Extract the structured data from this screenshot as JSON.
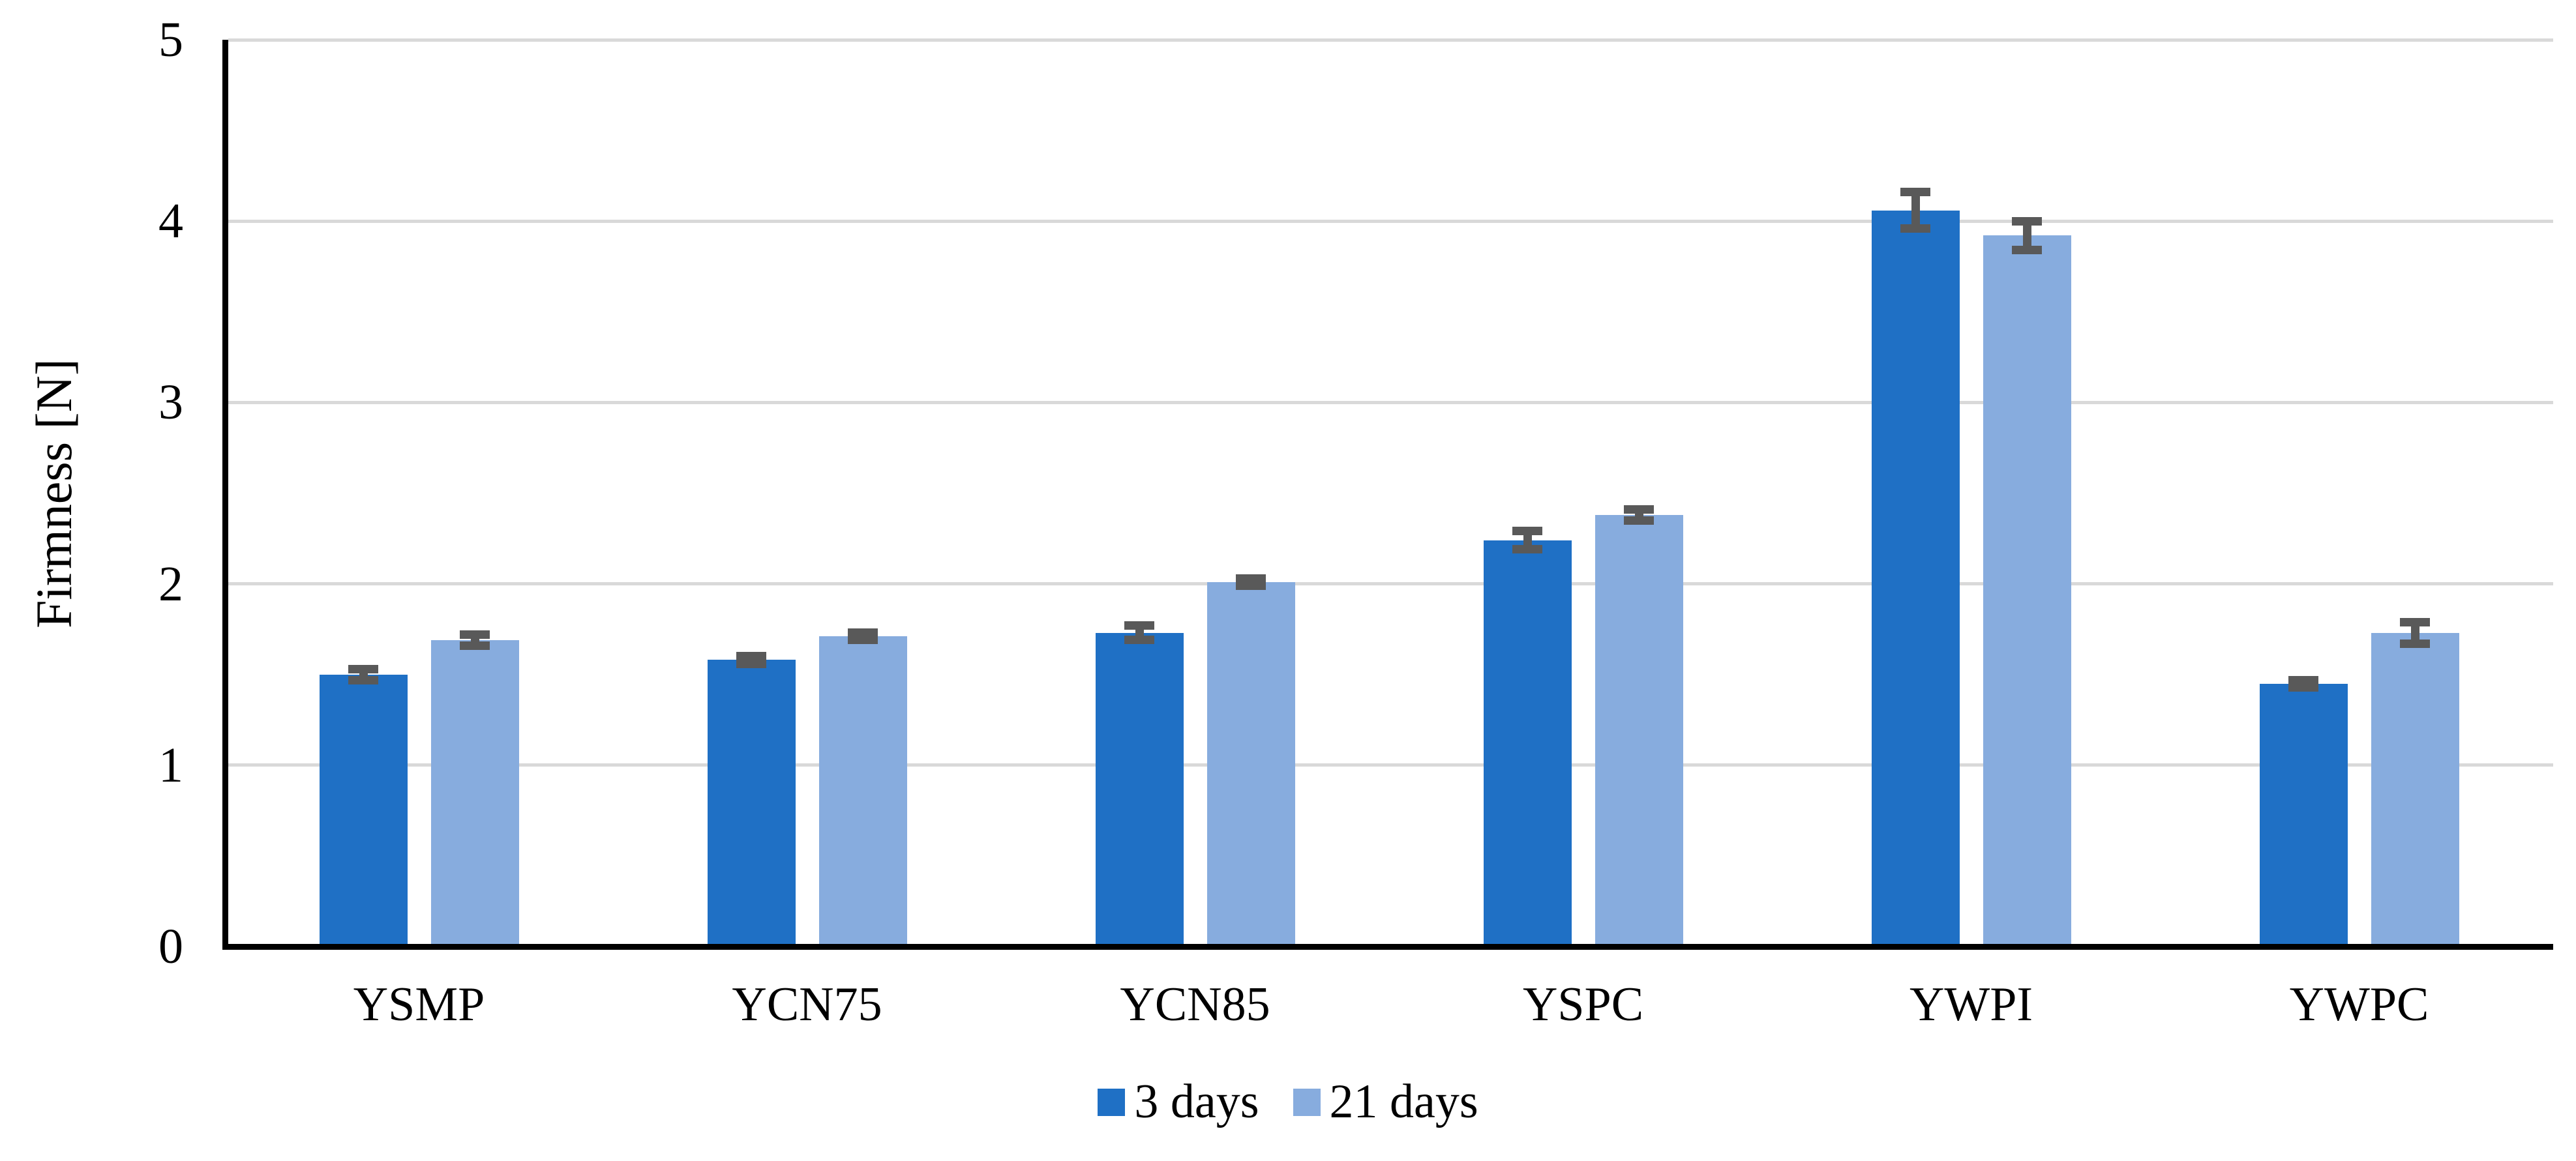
{
  "chart_data": {
    "type": "bar",
    "title": "",
    "ylabel": "Firmness [N]",
    "xlabel": "",
    "categories": [
      "YSMP",
      "YCN75",
      "YCN85",
      "YSPC",
      "YWPI",
      "YWPC"
    ],
    "series": [
      {
        "name": "3 days",
        "color": "#1F70C5",
        "values": [
          1.5,
          1.58,
          1.73,
          2.24,
          4.06,
          1.45
        ],
        "errors": [
          0.03,
          0.02,
          0.04,
          0.05,
          0.1,
          0.02
        ]
      },
      {
        "name": "21 days",
        "color": "#87ACDE",
        "values": [
          1.69,
          1.71,
          2.01,
          2.38,
          3.92,
          1.73
        ],
        "errors": [
          0.03,
          0.02,
          0.02,
          0.03,
          0.08,
          0.06
        ]
      }
    ],
    "ylim": [
      0,
      5
    ],
    "yticks": [
      0,
      1,
      2,
      3,
      4,
      5
    ],
    "grid": "horizontal",
    "gridline_color": "#D9D9D9",
    "axis_color": "#000000",
    "error_bar_color": "#595959",
    "legend_position": "bottom-center",
    "error_bars": "y-symmetric-with-caps"
  }
}
